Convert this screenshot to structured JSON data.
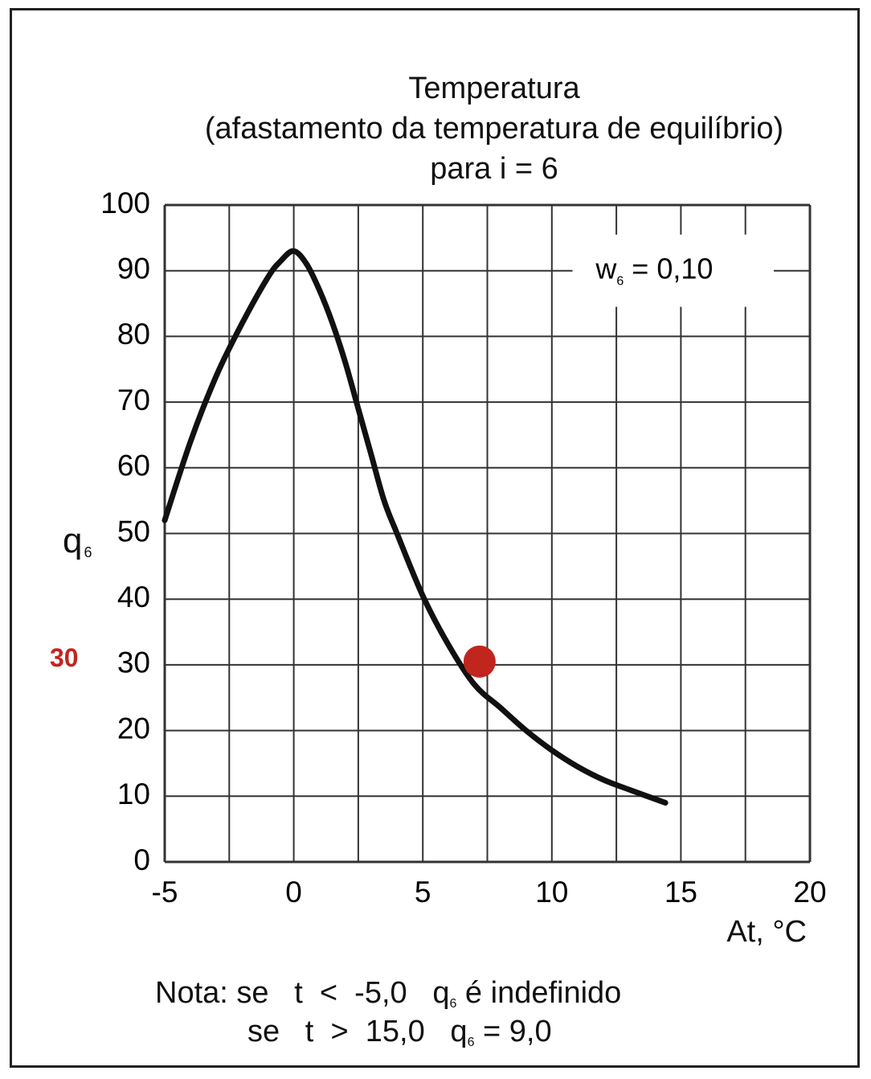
{
  "title_lines": [
    "Temperatura",
    "(afastamento da temperatura de equilíbrio)",
    "para i = 6"
  ],
  "chart_data": {
    "type": "line",
    "title": "Temperatura (afastamento da temperatura de equilíbrio) para i = 6",
    "xlabel": "At, °C",
    "ylabel": "q6",
    "xlim": [
      -5,
      20
    ],
    "ylim": [
      0,
      100
    ],
    "x_ticks": [
      "-5",
      "0",
      "5",
      "10",
      "15",
      "20"
    ],
    "y_ticks": [
      "0",
      "10",
      "20",
      "30",
      "40",
      "50",
      "60",
      "70",
      "80",
      "90",
      "100"
    ],
    "grid": true,
    "annotation": "w6 = 0,10",
    "series": [
      {
        "x": [
          -5,
          -4,
          -3,
          -2,
          -1,
          -0.5,
          0,
          0.5,
          1,
          1.5,
          2,
          2.5,
          3,
          3.5,
          4,
          5,
          6,
          7,
          8,
          9,
          10,
          11,
          12,
          13,
          14.4
        ],
        "y": [
          52,
          64,
          74,
          82,
          89,
          91.5,
          93,
          91,
          87,
          82,
          76,
          69,
          62,
          55,
          50,
          40.5,
          33,
          27,
          23.5,
          20,
          17,
          14.5,
          12.5,
          11,
          9
        ]
      }
    ],
    "highlight": {
      "x": 7.2,
      "y": 30.5,
      "label": "30",
      "color": "#c0261e"
    }
  },
  "axis": {
    "y_label_main": "q",
    "y_label_sub": "6",
    "x_label": "At, °C"
  },
  "legend_box": {
    "w_main": "w",
    "w_sub": "6",
    "w_value": " = 0,10"
  },
  "note": {
    "line1_prefix": "Nota: se   t  <  -5,0   q",
    "line1_sub": "6",
    "line1_suffix": " é indefinido",
    "line2_prefix": "se   t  >  15,0   q",
    "line2_sub": "6",
    "line2_suffix": " = 9,0"
  },
  "colors": {
    "curve": "#111111",
    "grid": "#333333",
    "marker": "#c0261e"
  }
}
